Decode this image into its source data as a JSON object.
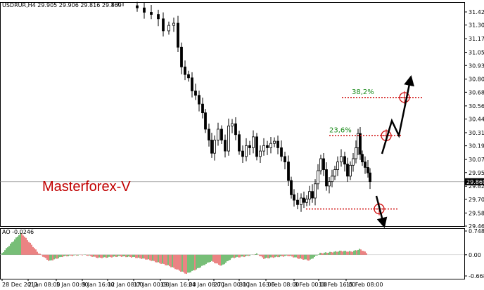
{
  "header": {
    "main_info": "USDRUR,H4  29.905 29.906 29.816 29.869",
    "ao_info": "AO -0.0246"
  },
  "brand_text": "Masterforex-V",
  "colors": {
    "candle": "#000000",
    "ao_up": "#2e9a2e",
    "ao_down": "#e04040",
    "fib_line": "#d01010",
    "fib_text": "#1a8a1a",
    "brand": "#c00000",
    "price_line": "#808080",
    "arrow": "#000000"
  },
  "chart_data": {
    "type": "candlestick",
    "symbol": "USDRUR",
    "timeframe": "H4",
    "ohlc": {
      "open": 29.905,
      "high": 29.906,
      "low": 29.816,
      "close": 29.869
    },
    "current_price": 29.869,
    "y_axis": {
      "ticks": [
        "31.423",
        "31.303",
        "31.178",
        "31.053",
        "30.933",
        "30.808",
        "30.688",
        "30.563",
        "30.443",
        "30.318",
        "30.198",
        "30.073",
        "29.953",
        "29.828",
        "29.708",
        "29.583",
        "29.463"
      ],
      "range": [
        29.463,
        31.423
      ]
    },
    "x_axis": {
      "ticks": [
        "28 Dec 2011",
        "2 Jan 08:00",
        "5 Jan 00:00",
        "9 Jan 16:00",
        "12 Jan 08:00",
        "17 Jan 00:00",
        "19 Jan 16:00",
        "24 Jan 08:00",
        "27 Jan 00:00",
        "31 Jan 16:00",
        "3 Feb 08:00",
        "8 Feb 00:00",
        "10 Feb 16:00",
        "15 Feb 08:00"
      ]
    },
    "fib_levels": [
      {
        "label": "38,2%",
        "price": 30.64
      },
      {
        "label": "23,6%",
        "price": 30.29
      }
    ],
    "support_price": 29.62,
    "ao": {
      "label": "AO -0.0246",
      "value": -0.0246,
      "ticks": [
        "0.7484",
        "0.00",
        "-0.6685"
      ],
      "range": [
        -0.6685,
        0.7484
      ]
    }
  }
}
